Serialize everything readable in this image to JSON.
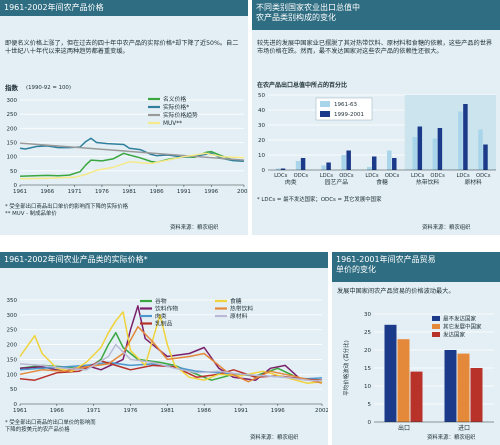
{
  "panel_a": {
    "title": "1961-2002年间农产品价格",
    "intro": "即便名义价格上涨了，但在过去的四十年中农产品的实际价格*却下降了近50%。自二十世纪八十年代以来这两种趋势都着重变缓。",
    "index_label": "指数",
    "base_label": "(1990-92 = 100)",
    "notes": [
      "* 受全部出口商品出口单价的影响而下降的实际价格",
      "** MUV - 制成品单价"
    ],
    "source": "资料来源：粮农组织"
  },
  "panel_b": {
    "title_line1": "不同类别国家农业出口总值中",
    "title_line2": "农产品类别构成的变化",
    "intro": "较先进的发展中国家业已摆脱了其对热带饮料、原材料和食糖的依赖，这些产品的世界市场价格在跌。然而，最不发达国家对这些农产品的依赖性还很大。",
    "chart_subtitle": "在农产品出口总值中所占的百分比",
    "footnote": "* LDCs = 最不发达国家；ODCs = 其它发展中国家",
    "source": "资料来源：粮农组织"
  },
  "panel_c": {
    "title": "1961-2002年间农业产品类的实际价格*",
    "footnote_line1": "* 受全部出口商品的出口单价的影响而",
    "footnote_line2": "下降的按美元的农产品价格",
    "source": "资料来源：粮农组织"
  },
  "panel_d": {
    "title_line1": "1961-2001年间农产品贸易",
    "title_line2": "单价的变化",
    "intro": "发展中国家间农产品贸易的价格波动最大。",
    "ylabel": "平均价格波动 (百分比)",
    "source": "资料来源：粮农组织"
  },
  "colors": {
    "panel_bg": "#e3eff4",
    "header": "#2f6d82",
    "navy": "#1c3a8a",
    "sky": "#4b97ce",
    "light_blue": "#a8d5ea",
    "yellow": "#f5e98a",
    "gray": "#9a9a9a",
    "green": "#3aa640",
    "red": "#b8322a",
    "orange": "#e4883a"
  },
  "chart_data": [
    {
      "type": "line",
      "ylim": [
        0,
        300
      ],
      "yticks": [
        0,
        50,
        100,
        150,
        200,
        250,
        300
      ],
      "xlim": [
        1961,
        2002
      ],
      "xticks": [
        "1961",
        "1966",
        "1971",
        "1976",
        "1981",
        "1986",
        "1991",
        "1996",
        "2002"
      ],
      "series": [
        {
          "name": "名义价格",
          "color": "#3aa640",
          "x": [
            1961,
            1963,
            1966,
            1968,
            1970,
            1972,
            1973,
            1974,
            1976,
            1978,
            1980,
            1981,
            1983,
            1985,
            1986,
            1988,
            1991,
            1993,
            1995,
            1996,
            1998,
            2000,
            2002
          ],
          "y": [
            31,
            32,
            34,
            33,
            35,
            47,
            70,
            88,
            85,
            92,
            112,
            106,
            96,
            83,
            80,
            90,
            99,
            98,
            115,
            118,
            102,
            88,
            86
          ]
        },
        {
          "name": "实际价格*",
          "color": "#2f7f9d",
          "x": [
            1961,
            1962,
            1964,
            1966,
            1968,
            1970,
            1972,
            1973,
            1974,
            1975,
            1977,
            1980,
            1981,
            1983,
            1985,
            1986,
            1988,
            1991,
            1994,
            1996,
            1998,
            2000,
            2002
          ],
          "y": [
            130,
            127,
            136,
            138,
            132,
            132,
            134,
            153,
            165,
            150,
            146,
            143,
            130,
            125,
            108,
            103,
            106,
            98,
            105,
            112,
            94,
            86,
            84
          ]
        },
        {
          "name": "实际价格趋势",
          "color": "#9a9a9a",
          "x": [
            1961,
            2002
          ],
          "y": [
            148,
            88
          ]
        },
        {
          "name": "MUV**",
          "color": "#f5e98a",
          "x": [
            1961,
            1966,
            1971,
            1973,
            1975,
            1978,
            1981,
            1985,
            1988,
            1991,
            1995,
            1998,
            2002
          ],
          "y": [
            22,
            24,
            27,
            37,
            52,
            62,
            82,
            76,
            88,
            100,
            112,
            100,
            97
          ]
        }
      ]
    },
    {
      "type": "bar",
      "ylim": [
        0,
        50
      ],
      "yticks": [
        0,
        10,
        20,
        30,
        40,
        50
      ],
      "groups": [
        {
          "name": "肉类",
          "categories": [
            "LDCs",
            "ODCs"
          ]
        },
        {
          "name": "园艺产品",
          "categories": [
            "LDCs",
            "ODCs"
          ]
        },
        {
          "name": "食糖",
          "categories": [
            "LDCs",
            "ODCs"
          ]
        },
        {
          "name": "热带饮料",
          "categories": [
            "LDCs",
            "ODCs"
          ]
        },
        {
          "name": "原材料",
          "categories": [
            "LDCs",
            "ODCs"
          ]
        }
      ],
      "series": [
        {
          "name": "1961-63",
          "color": "#a8d5ea",
          "values": [
            1,
            6,
            3,
            10,
            2,
            13,
            22,
            21,
            39,
            27
          ]
        },
        {
          "name": "1999-2001",
          "color": "#1c3a8a",
          "values": [
            1,
            8,
            5,
            13,
            9,
            8,
            29,
            28,
            44,
            17
          ]
        }
      ]
    },
    {
      "type": "line",
      "ylim": [
        0,
        350
      ],
      "yticks": [
        0,
        50,
        100,
        150,
        200,
        250,
        300,
        350
      ],
      "xlim": [
        1961,
        2002
      ],
      "xticks": [
        "1961",
        "1966",
        "1971",
        "1976",
        "1981",
        "1986",
        "1991",
        "1996",
        "2002"
      ],
      "series": [
        {
          "name": "谷物",
          "color": "#3aa640",
          "x": [
            1961,
            1964,
            1967,
            1970,
            1972,
            1973,
            1974,
            1975,
            1977,
            1980,
            1982,
            1985,
            1987,
            1990,
            1993,
            1996,
            1999,
            2002
          ],
          "y": [
            120,
            130,
            125,
            115,
            150,
            200,
            240,
            190,
            150,
            140,
            130,
            100,
            80,
            100,
            95,
            120,
            85,
            80
          ]
        },
        {
          "name": "饮料作物",
          "color": "#7a1f6b",
          "x": [
            1961,
            1964,
            1967,
            1970,
            1972,
            1975,
            1976,
            1977,
            1978,
            1979,
            1981,
            1984,
            1986,
            1988,
            1990,
            1993,
            1995,
            1997,
            1999,
            2002
          ],
          "y": [
            120,
            125,
            110,
            130,
            115,
            150,
            250,
            330,
            220,
            200,
            160,
            170,
            190,
            120,
            90,
            80,
            120,
            130,
            85,
            75
          ]
        },
        {
          "name": "肉类",
          "color": "#4b97ce",
          "x": [
            1961,
            1964,
            1967,
            1970,
            1973,
            1976,
            1979,
            1982,
            1985,
            1988,
            1991,
            1994,
            1997,
            2000,
            2002
          ],
          "y": [
            115,
            120,
            125,
            130,
            140,
            130,
            135,
            125,
            110,
            105,
            100,
            95,
            90,
            85,
            88
          ]
        },
        {
          "name": "乳制品",
          "color": "#b8322a",
          "x": [
            1961,
            1963,
            1966,
            1969,
            1972,
            1974,
            1976,
            1979,
            1982,
            1985,
            1988,
            1990,
            1993,
            1996,
            1999,
            2002
          ],
          "y": [
            85,
            80,
            105,
            110,
            145,
            130,
            115,
            130,
            125,
            90,
            100,
            115,
            90,
            95,
            85,
            80
          ]
        },
        {
          "name": "食糖",
          "color": "#f0d33a",
          "x": [
            1961,
            1963,
            1964,
            1966,
            1968,
            1970,
            1972,
            1973,
            1974,
            1975,
            1976,
            1978,
            1980,
            1981,
            1982,
            1984,
            1986,
            1988,
            1991,
            1994,
            1997,
            2000,
            2002
          ],
          "y": [
            160,
            230,
            170,
            120,
            110,
            140,
            190,
            240,
            280,
            310,
            180,
            130,
            300,
            200,
            130,
            90,
            80,
            100,
            95,
            110,
            90,
            70,
            75
          ]
        },
        {
          "name": "热带饮料",
          "color": "#e4883a",
          "x": [
            1961,
            1964,
            1967,
            1970,
            1973,
            1975,
            1977,
            1979,
            1981,
            1984,
            1986,
            1989,
            1992,
            1995,
            1998,
            2002
          ],
          "y": [
            100,
            115,
            110,
            125,
            135,
            170,
            260,
            210,
            150,
            160,
            170,
            110,
            75,
            110,
            95,
            70
          ]
        },
        {
          "name": "原材料",
          "color": "#b9b9d6",
          "x": [
            1961,
            1964,
            1967,
            1970,
            1973,
            1974,
            1976,
            1979,
            1982,
            1985,
            1988,
            1991,
            1994,
            1997,
            2000,
            2002
          ],
          "y": [
            135,
            130,
            120,
            115,
            160,
            200,
            150,
            140,
            120,
            105,
            110,
            100,
            95,
            90,
            80,
            78
          ]
        }
      ]
    },
    {
      "type": "bar",
      "ylim": [
        0,
        30
      ],
      "yticks": [
        0,
        5,
        10,
        15,
        20,
        25,
        30
      ],
      "categories": [
        "出口",
        "进口"
      ],
      "series": [
        {
          "name": "最不发达国家",
          "color": "#1c3a8a",
          "values": [
            27,
            20
          ]
        },
        {
          "name": "其它发展中国家",
          "color": "#e4883a",
          "values": [
            23,
            19
          ]
        },
        {
          "name": "发达国家",
          "color": "#b8322a",
          "values": [
            14,
            15
          ]
        }
      ]
    }
  ]
}
